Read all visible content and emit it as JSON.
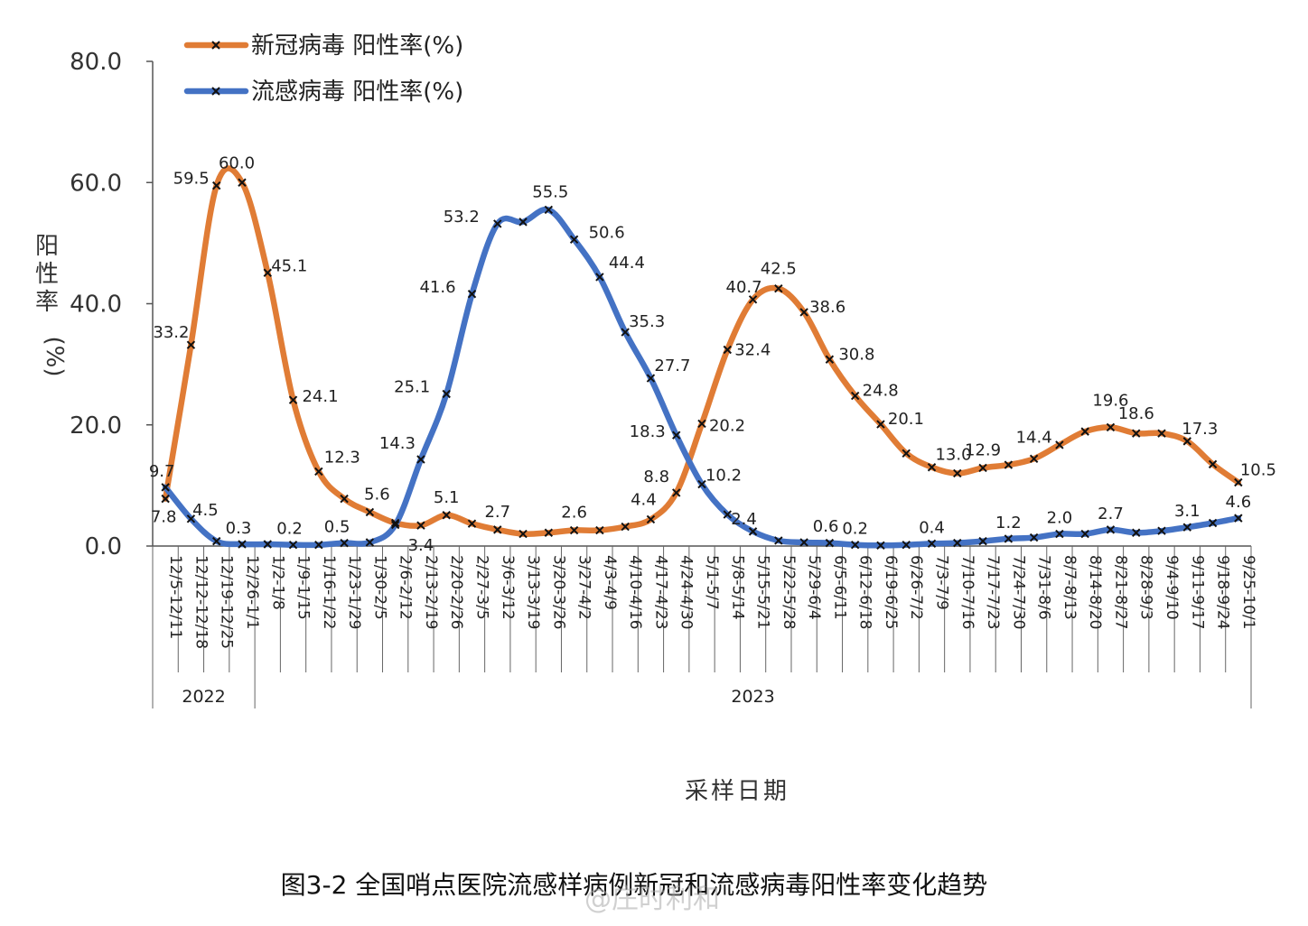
{
  "chart_data": {
    "type": "line",
    "title": "",
    "caption": "图3-2 全国哨点医院流感样病例新冠和流感病毒阳性率变化趋势",
    "xlabel": "采样日期",
    "ylabel": [
      "阳",
      "性",
      "率",
      "(%)"
    ],
    "ylim": [
      0,
      80
    ],
    "yticks": [
      "0.0",
      "20.0",
      "40.0",
      "60.0",
      "80.0"
    ],
    "grid": false,
    "legend_position": "top-left",
    "categories": [
      "12/5-12/11",
      "12/12-12/18",
      "12/19-12/25",
      "12/26-1/1",
      "1/2-1/8",
      "1/9-1/15",
      "1/16-1/22",
      "1/23-1/29",
      "1/30-2/5",
      "2/6-2/12",
      "2/13-2/19",
      "2/20-2/26",
      "2/27-3/5",
      "3/6-3/12",
      "3/13-3/19",
      "3/20-3/26",
      "3/27-4/2",
      "4/3-4/9",
      "4/10-4/16",
      "4/17-4/23",
      "4/24-4/30",
      "5/1-5/7",
      "5/8-5/14",
      "5/15-5/21",
      "5/22-5/28",
      "5/29-6/4",
      "6/5-6/11",
      "6/12-6/18",
      "6/19-6/25",
      "6/26-7/2",
      "7/3-7/9",
      "7/10-7/16",
      "7/17-7/23",
      "7/24-7/30",
      "7/31-8/6",
      "8/7-8/13",
      "8/14-8/20",
      "8/21-8/27",
      "8/28-9/3",
      "9/4-9/10",
      "9/11-9/17",
      "9/18-9/24",
      "9/25-10/1"
    ],
    "year_groups": [
      {
        "label": "2022",
        "count": 4
      },
      {
        "label": "2023",
        "count": 39
      }
    ],
    "series": [
      {
        "name": "新冠病毒 阳性率(%)",
        "color": "#e07c35",
        "values": [
          7.8,
          33.2,
          59.5,
          60.0,
          45.1,
          24.1,
          12.3,
          7.8,
          5.6,
          3.8,
          3.4,
          5.1,
          3.7,
          2.7,
          2.0,
          2.2,
          2.6,
          2.6,
          3.2,
          4.4,
          8.8,
          20.2,
          32.4,
          40.7,
          42.5,
          38.6,
          30.8,
          24.8,
          20.1,
          15.3,
          13.0,
          12.0,
          12.9,
          13.4,
          14.4,
          16.7,
          18.9,
          19.6,
          18.6,
          18.6,
          17.3,
          13.5,
          10.5
        ],
        "labels": {
          "0": "7.8",
          "1": "33.2",
          "2": "59.5",
          "3": "60.0",
          "4": "45.1",
          "5": "24.1",
          "6": "12.3",
          "8": "5.6",
          "10": "3.4",
          "11": "5.1",
          "13": "2.7",
          "16": "2.6",
          "19": "4.4",
          "20": "8.8",
          "21": "20.2",
          "22": "32.4",
          "23": "40.7",
          "24": "42.5",
          "25": "38.6",
          "26": "30.8",
          "27": "24.8",
          "28": "20.1",
          "30": "13.0",
          "32": "12.9",
          "34": "14.4",
          "37": "19.6",
          "38": "18.6",
          "40": "17.3",
          "42": "10.5"
        }
      },
      {
        "name": "流感病毒 阳性率(%)",
        "color": "#4472c4",
        "values": [
          9.7,
          4.5,
          0.8,
          0.3,
          0.3,
          0.2,
          0.2,
          0.5,
          0.6,
          3.5,
          14.3,
          25.1,
          41.6,
          53.2,
          53.5,
          55.5,
          50.6,
          44.4,
          35.3,
          27.7,
          18.3,
          10.2,
          5.2,
          2.4,
          0.9,
          0.6,
          0.5,
          0.2,
          0.1,
          0.2,
          0.4,
          0.5,
          0.8,
          1.2,
          1.4,
          2.0,
          2.0,
          2.7,
          2.2,
          2.5,
          3.1,
          3.8,
          4.6
        ],
        "labels": {
          "0": "9.7",
          "1": "4.5",
          "3": "0.3",
          "5": "0.2",
          "7": "0.5",
          "10": "14.3",
          "11": "25.1",
          "12": "41.6",
          "13": "53.2",
          "15": "55.5",
          "16": "50.6",
          "17": "44.4",
          "18": "35.3",
          "19": "27.7",
          "20": "18.3",
          "21": "10.2",
          "23": "2.4",
          "25": "0.6",
          "27": "0.2",
          "30": "0.4",
          "33": "1.2",
          "35": "2.0",
          "37": "2.7",
          "40": "3.1",
          "42": "4.6"
        }
      }
    ]
  },
  "watermark": "@庄时利和"
}
